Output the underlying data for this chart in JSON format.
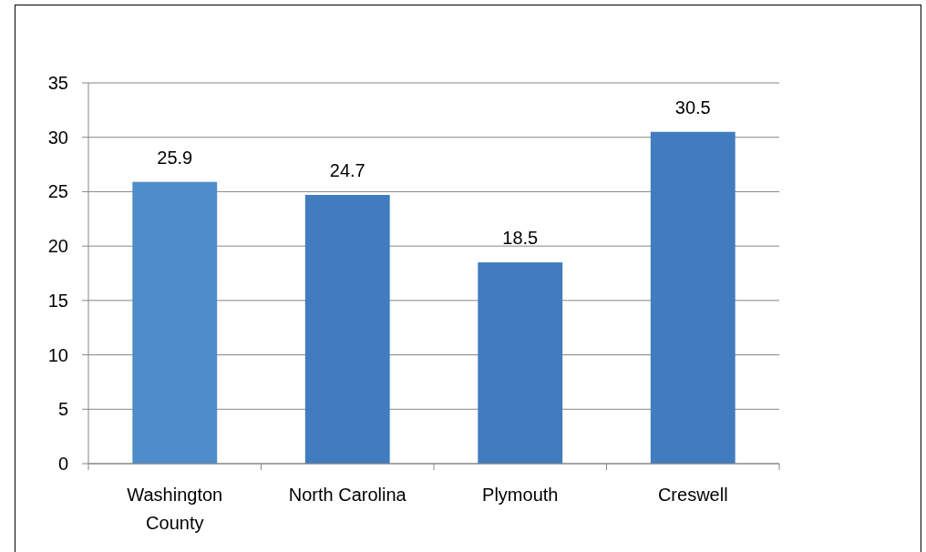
{
  "chart_data": {
    "type": "bar",
    "categories": [
      "Washington County",
      "North Carolina",
      "Plymouth",
      "Creswell"
    ],
    "values": [
      25.9,
      24.7,
      18.5,
      30.5
    ],
    "colors": [
      "#4f8ccb",
      "#407cbe",
      "#407cbe",
      "#407cbe"
    ],
    "ylim": [
      0,
      35
    ],
    "yticks": [
      0,
      5,
      10,
      15,
      20,
      25,
      30,
      35
    ],
    "grid": "y",
    "data_labels": true
  }
}
